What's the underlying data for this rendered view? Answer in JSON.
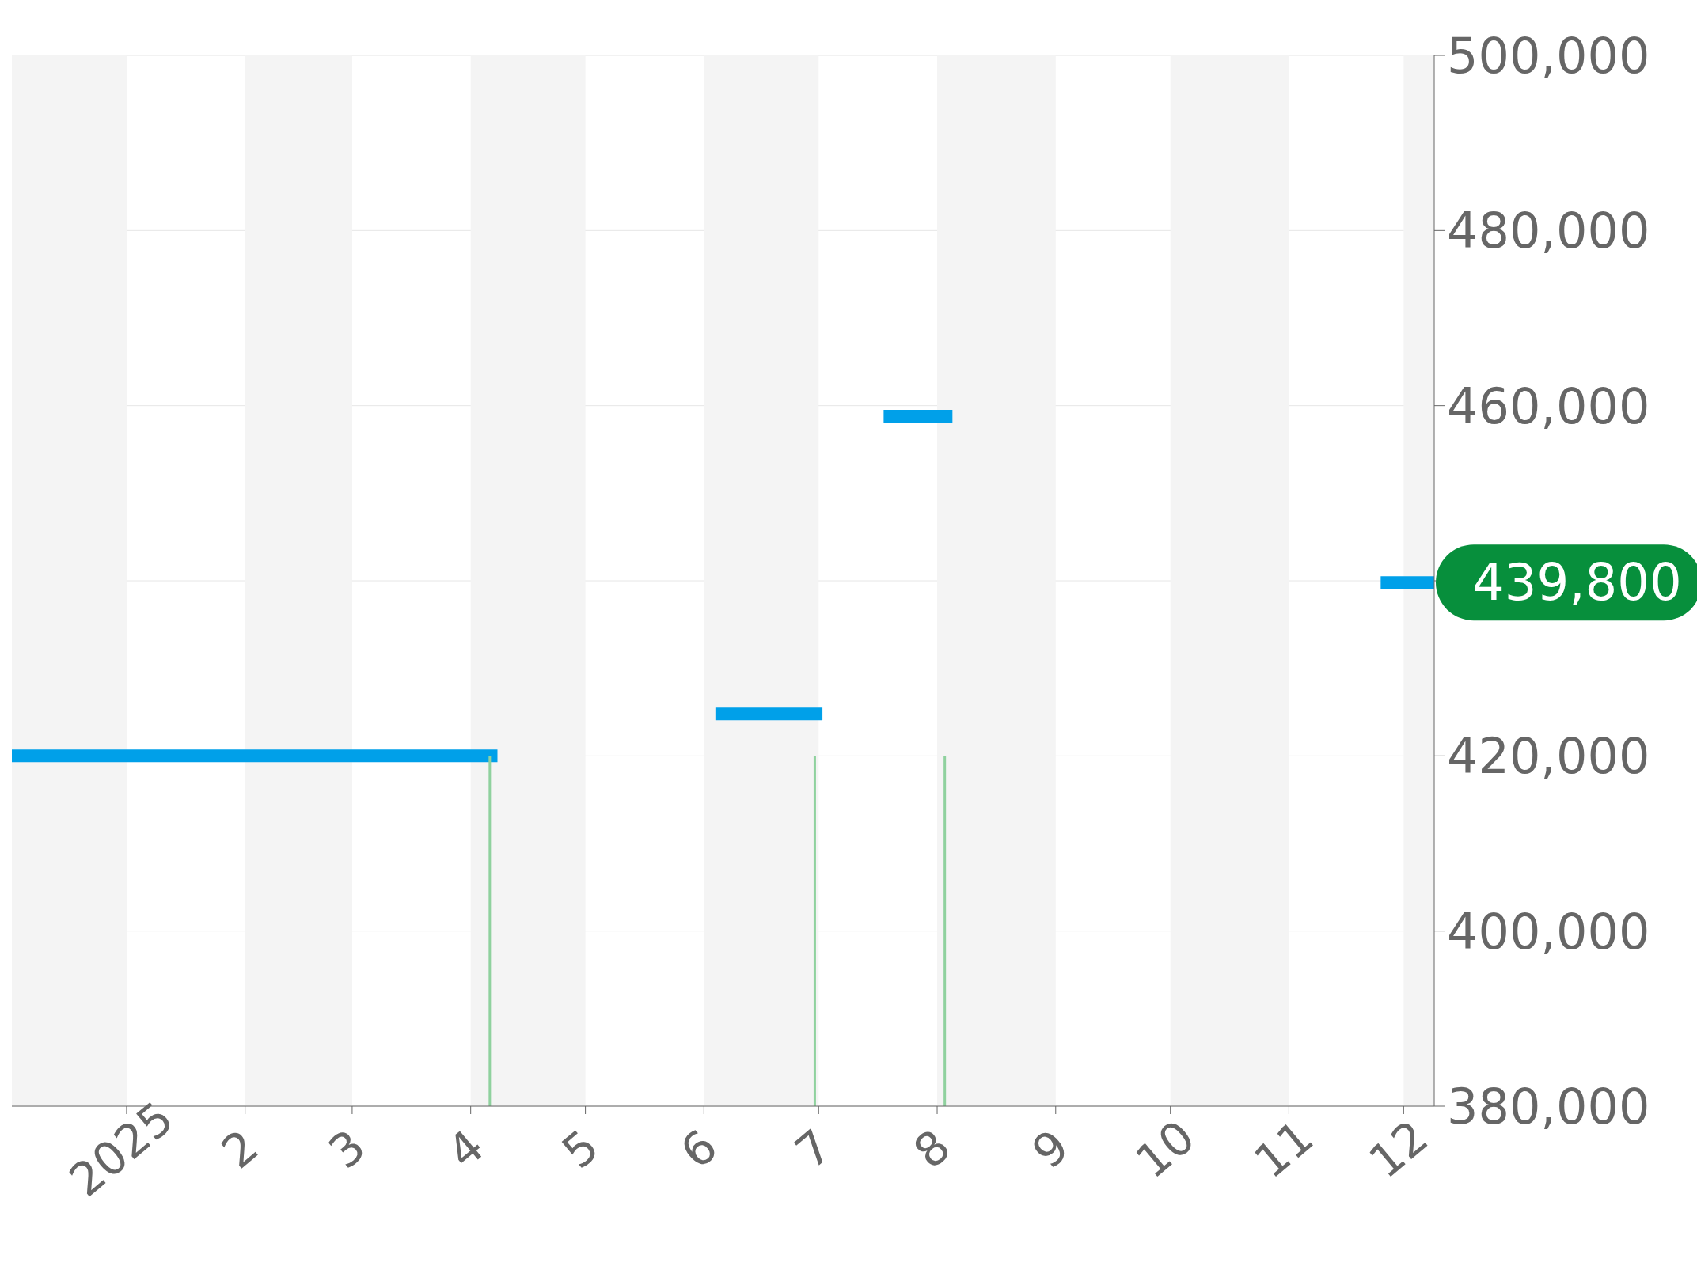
{
  "chart_data": {
    "type": "line",
    "x": [
      "2024-12-02",
      "2025-04-08",
      null,
      "2025-06-04",
      "2025-07-02",
      null,
      "2025-07-18",
      "2025-08-05",
      null,
      "2025-11-25",
      "2025-12-09"
    ],
    "series": [
      {
        "color": "#00a0e9",
        "values": [
          420000,
          420000,
          null,
          424800,
          424800,
          null,
          458800,
          458800,
          null,
          439800,
          439800
        ]
      },
      {
        "type": "bar",
        "color": "#8fd19e",
        "x": [
          "2025-04-06",
          "2025-06-30",
          "2025-08-03"
        ],
        "values": [
          420000,
          420000,
          420000
        ]
      }
    ],
    "xlim": [
      "2024-12-02",
      "2025-12-09"
    ],
    "xticks": [
      {
        "value": "2025-01-01",
        "label": "2025"
      },
      {
        "value": "2025-02-01",
        "label": "2"
      },
      {
        "value": "2025-03-01",
        "label": "3"
      },
      {
        "value": "2025-04-01",
        "label": "4"
      },
      {
        "value": "2025-05-01",
        "label": "5"
      },
      {
        "value": "2025-06-01",
        "label": "6"
      },
      {
        "value": "2025-07-01",
        "label": "7"
      },
      {
        "value": "2025-08-01",
        "label": "8"
      },
      {
        "value": "2025-09-01",
        "label": "9"
      },
      {
        "value": "2025-10-01",
        "label": "10"
      },
      {
        "value": "2025-11-01",
        "label": "11"
      },
      {
        "value": "2025-12-01",
        "label": "12"
      }
    ],
    "ylim": [
      380000,
      500000
    ],
    "yticks": [
      {
        "value": 380000,
        "label": "380,000"
      },
      {
        "value": 400000,
        "label": "400,000"
      },
      {
        "value": 420000,
        "label": "420,000"
      },
      {
        "value": 440000,
        "label": null
      },
      {
        "value": 460000,
        "label": "460,000"
      },
      {
        "value": 480000,
        "label": "480,000"
      },
      {
        "value": 500000,
        "label": "500,000"
      }
    ],
    "grid": "y",
    "marker": "none",
    "line_style": "solid",
    "bands": [
      {
        "axis": "x",
        "from": "2024-12-02",
        "to": "2025-01-01",
        "color": "#f4f4f4"
      },
      {
        "axis": "x",
        "from": "2025-02-01",
        "to": "2025-03-01",
        "color": "#f4f4f4"
      },
      {
        "axis": "x",
        "from": "2025-04-01",
        "to": "2025-05-01",
        "color": "#f4f4f4"
      },
      {
        "axis": "x",
        "from": "2025-06-01",
        "to": "2025-07-01",
        "color": "#f4f4f4"
      },
      {
        "axis": "x",
        "from": "2025-08-01",
        "to": "2025-09-01",
        "color": "#f4f4f4"
      },
      {
        "axis": "x",
        "from": "2025-10-01",
        "to": "2025-11-01",
        "color": "#f4f4f4"
      },
      {
        "axis": "x",
        "from": "2025-12-01",
        "to": "2025-12-09",
        "color": "#f4f4f4"
      }
    ],
    "annotations": [
      {
        "text": "439,800",
        "x": "2025-12-09",
        "y": 439800
      }
    ]
  }
}
